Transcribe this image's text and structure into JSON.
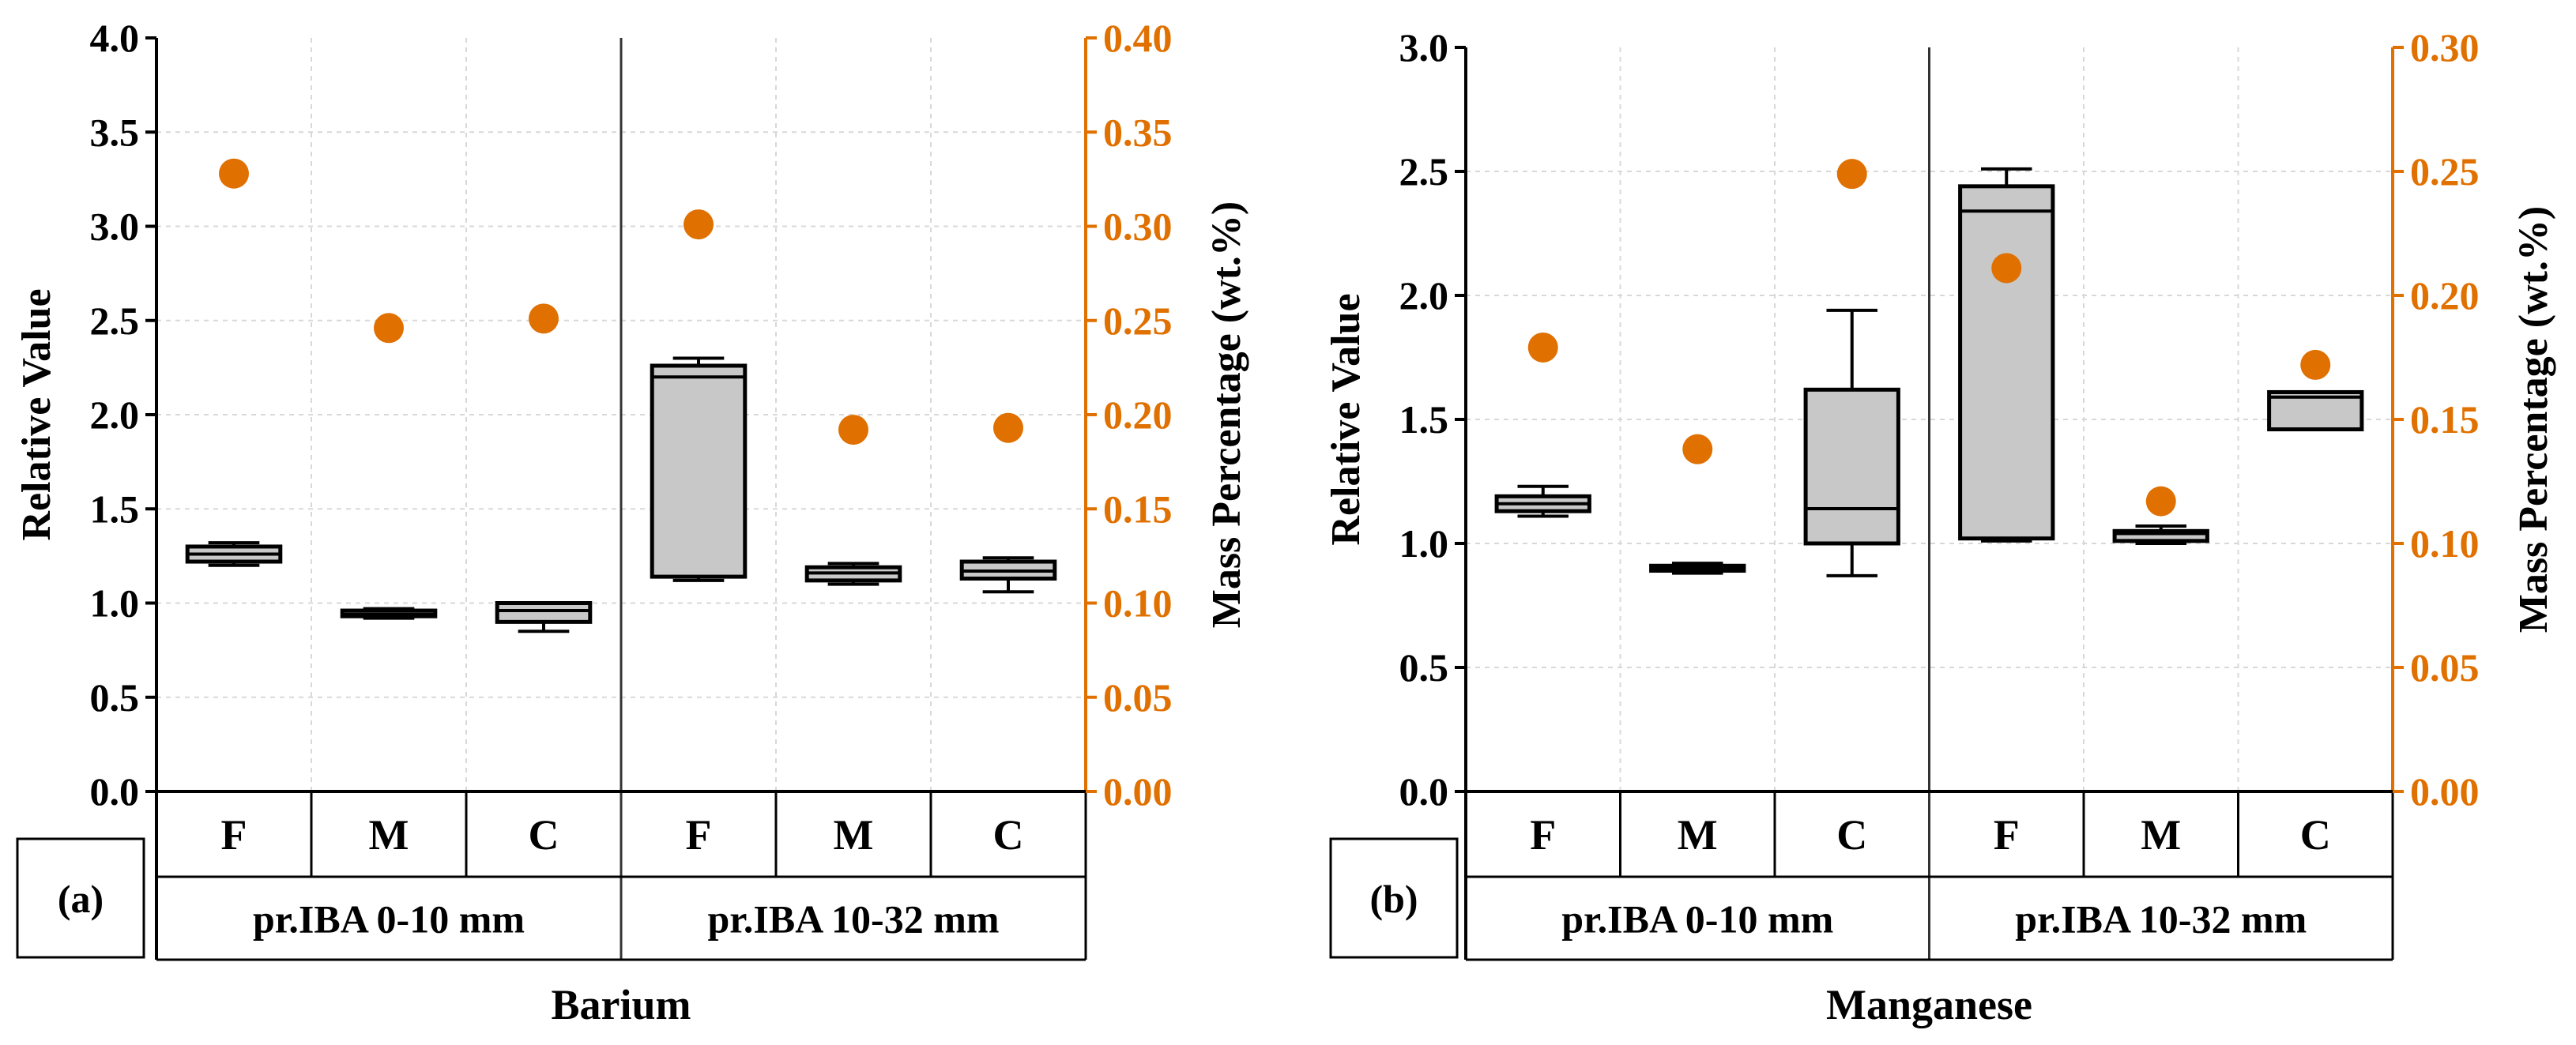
{
  "chart_data": [
    {
      "type": "box",
      "panel_label": "(a)",
      "title": "Barium",
      "ylabel": "Relative Value",
      "ylabel_right": "Mass Percentage (wt.%)",
      "ylim": [
        0,
        4.0
      ],
      "ylim_right": [
        0,
        0.4
      ],
      "yticks": [
        "0.0",
        "0.5",
        "1.0",
        "1.5",
        "2.0",
        "2.5",
        "3.0",
        "3.5",
        "4.0"
      ],
      "yticks_right": [
        "0.00",
        "0.05",
        "0.10",
        "0.15",
        "0.20",
        "0.25",
        "0.30",
        "0.35",
        "0.40"
      ],
      "groups": [
        {
          "label": "pr.IBA 0-10 mm",
          "categories": [
            "F",
            "M",
            "C"
          ]
        },
        {
          "label": "pr.IBA 10-32 mm",
          "categories": [
            "F",
            "M",
            "C"
          ]
        }
      ],
      "boxes": [
        {
          "category": "F",
          "group": "pr.IBA 0-10 mm",
          "min": 1.2,
          "q1": 1.22,
          "median": 1.26,
          "q3": 1.3,
          "max": 1.32
        },
        {
          "category": "M",
          "group": "pr.IBA 0-10 mm",
          "min": 0.92,
          "q1": 0.93,
          "median": 0.94,
          "q3": 0.96,
          "max": 0.97
        },
        {
          "category": "C",
          "group": "pr.IBA 0-10 mm",
          "min": 0.85,
          "q1": 0.9,
          "median": 0.96,
          "q3": 1.0,
          "max": 1.0
        },
        {
          "category": "F",
          "group": "pr.IBA 10-32 mm",
          "min": 1.12,
          "q1": 1.14,
          "median": 2.2,
          "q3": 2.26,
          "max": 2.3
        },
        {
          "category": "M",
          "group": "pr.IBA 10-32 mm",
          "min": 1.1,
          "q1": 1.12,
          "median": 1.16,
          "q3": 1.19,
          "max": 1.21
        },
        {
          "category": "C",
          "group": "pr.IBA 10-32 mm",
          "min": 1.06,
          "q1": 1.13,
          "median": 1.17,
          "q3": 1.22,
          "max": 1.24
        }
      ],
      "mass_percentage": [
        0.328,
        0.246,
        0.251,
        0.301,
        0.192,
        0.193
      ],
      "colors": {
        "box_fill": "#C8C8C8",
        "marker": "#E07000",
        "right_axis": "#E07000"
      }
    },
    {
      "type": "box",
      "panel_label": "(b)",
      "title": "Manganese",
      "ylabel": "Relative Value",
      "ylabel_right": "Mass Percentage (wt.%)",
      "ylim": [
        0,
        3.0
      ],
      "ylim_right": [
        0,
        0.3
      ],
      "yticks": [
        "0.0",
        "0.5",
        "1.0",
        "1.5",
        "2.0",
        "2.5",
        "3.0"
      ],
      "yticks_right": [
        "0.00",
        "0.05",
        "0.10",
        "0.15",
        "0.20",
        "0.25",
        "0.30"
      ],
      "groups": [
        {
          "label": "pr.IBA 0-10 mm",
          "categories": [
            "F",
            "M",
            "C"
          ]
        },
        {
          "label": "pr.IBA 10-32 mm",
          "categories": [
            "F",
            "M",
            "C"
          ]
        }
      ],
      "boxes": [
        {
          "category": "F",
          "group": "pr.IBA 0-10 mm",
          "min": 1.11,
          "q1": 1.13,
          "median": 1.16,
          "q3": 1.19,
          "max": 1.23
        },
        {
          "category": "M",
          "group": "pr.IBA 0-10 mm",
          "min": 0.88,
          "q1": 0.89,
          "median": 0.9,
          "q3": 0.91,
          "max": 0.92
        },
        {
          "category": "C",
          "group": "pr.IBA 0-10 mm",
          "min": 0.87,
          "q1": 1.0,
          "median": 1.14,
          "q3": 1.62,
          "max": 1.94
        },
        {
          "category": "F",
          "group": "pr.IBA 10-32 mm",
          "min": 1.01,
          "q1": 1.02,
          "median": 2.34,
          "q3": 2.44,
          "max": 2.51
        },
        {
          "category": "M",
          "group": "pr.IBA 10-32 mm",
          "min": 1.0,
          "q1": 1.01,
          "median": 1.04,
          "q3": 1.05,
          "max": 1.07
        },
        {
          "category": "C",
          "group": "pr.IBA 10-32 mm",
          "min": 1.46,
          "q1": 1.46,
          "median": 1.59,
          "q3": 1.61,
          "max": 1.61
        }
      ],
      "mass_percentage": [
        0.179,
        0.138,
        0.249,
        0.211,
        0.117,
        0.172
      ],
      "colors": {
        "box_fill": "#C8C8C8",
        "marker": "#E07000",
        "right_axis": "#E07000"
      }
    }
  ]
}
